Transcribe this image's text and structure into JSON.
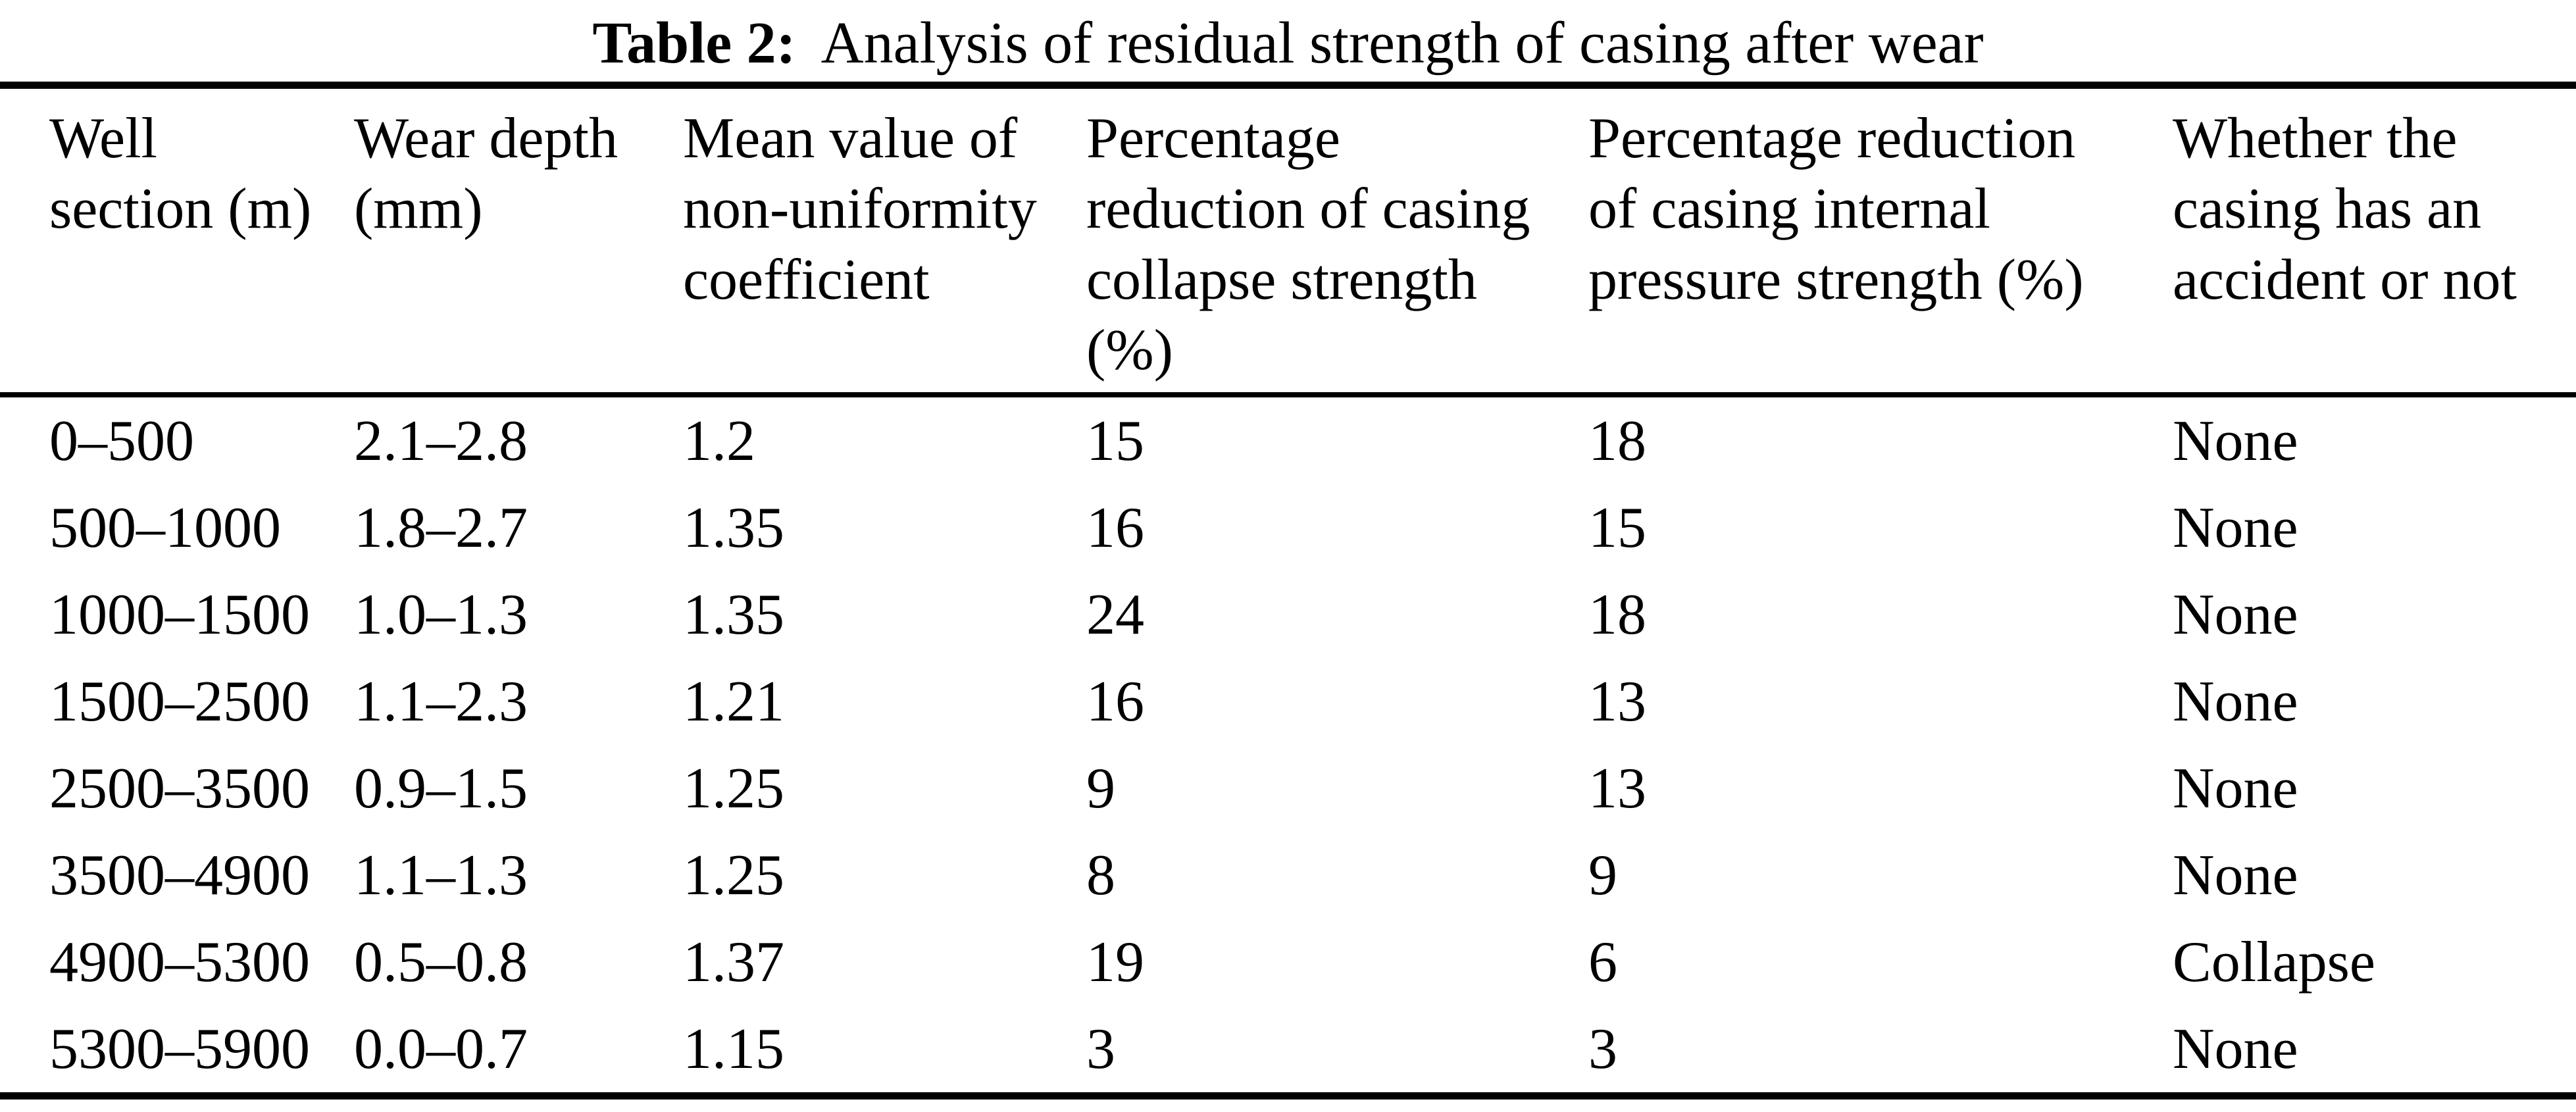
{
  "caption": {
    "label": "Table 2:",
    "text": "Analysis of residual strength of casing after wear"
  },
  "columns": [
    {
      "label": "Well section (m)",
      "lines": [
        "Well",
        "section (m)"
      ]
    },
    {
      "label": "Wear depth (mm)",
      "lines": [
        "Wear depth",
        "(mm)"
      ]
    },
    {
      "label": "Mean value of non-uniformity coefficient",
      "lines": [
        "Mean value of",
        "non-uniformity",
        "coefficient"
      ]
    },
    {
      "label": "Percentage reduction of casing collapse strength (%)",
      "lines": [
        "Percentage",
        "reduction of casing",
        "collapse strength",
        "(%)"
      ]
    },
    {
      "label": "Percentage reduction of casing internal pressure strength (%)",
      "lines": [
        "Percentage reduction",
        "of casing internal",
        "pressure strength (%)"
      ]
    },
    {
      "label": "Whether the casing has an accident or not",
      "lines": [
        "Whether the",
        "casing has an",
        "accident or not"
      ]
    }
  ],
  "rows": [
    [
      "0–500",
      "2.1–2.8",
      "1.2",
      "15",
      "18",
      "None"
    ],
    [
      "500–1000",
      "1.8–2.7",
      "1.35",
      "16",
      "15",
      "None"
    ],
    [
      "1000–1500",
      "1.0–1.3",
      "1.35",
      "24",
      "18",
      "None"
    ],
    [
      "1500–2500",
      "1.1–2.3",
      "1.21",
      "16",
      "13",
      "None"
    ],
    [
      "2500–3500",
      "0.9–1.5",
      "1.25",
      "9",
      "13",
      "None"
    ],
    [
      "3500–4900",
      "1.1–1.3",
      "1.25",
      "8",
      "9",
      "None"
    ],
    [
      "4900–5300",
      "0.5–0.8",
      "1.37",
      "19",
      "6",
      "Collapse"
    ],
    [
      "5300–5900",
      "0.0–0.7",
      "1.15",
      "3",
      "3",
      "None"
    ]
  ]
}
